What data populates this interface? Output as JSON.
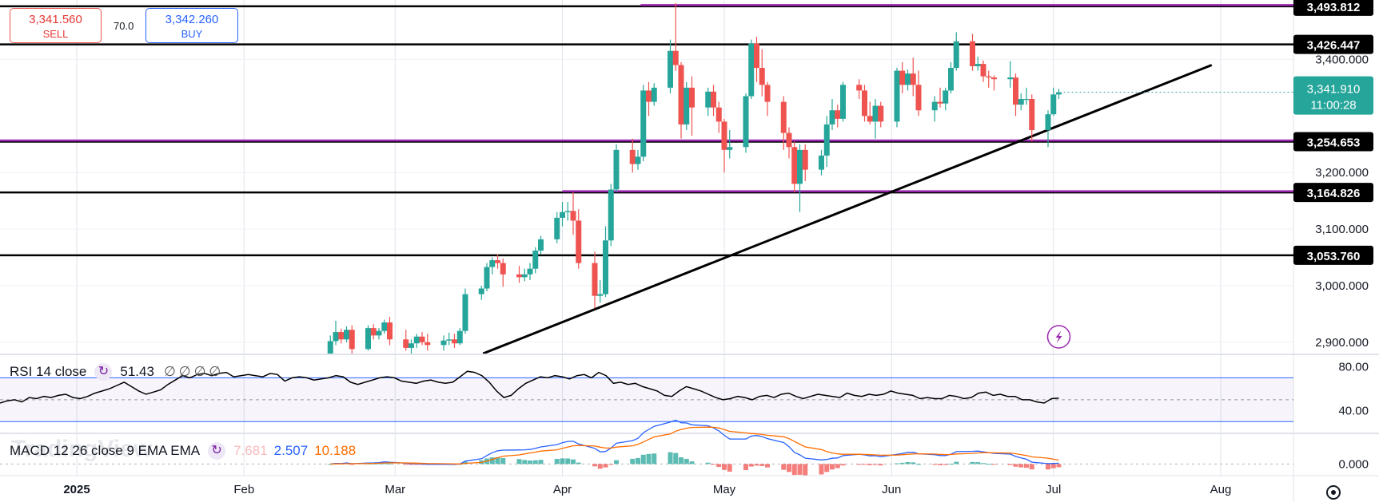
{
  "trade_panel": {
    "sell_price": "3,341.560",
    "sell_label": "SELL",
    "spread": "70.0",
    "buy_price": "3,342.260",
    "buy_label": "BUY"
  },
  "watermark": "TradingView",
  "colors": {
    "up": "#26a69a",
    "down": "#ef5350",
    "level_line": "#000000",
    "purple_line": "#9c27b0",
    "rsi_line": "#000000",
    "rsi_bands": "#2962ff",
    "macd_line": "#2962ff",
    "signal_line": "#ff6d00",
    "price_label_bg": "#000000",
    "current_price_bg": "#26a69a"
  },
  "chart_data": {
    "type": "candlestick",
    "y_range": [
      2880,
      3505
    ],
    "x_axis_labels": [
      "2025",
      "Feb",
      "Mar",
      "Apr",
      "May",
      "Jun",
      "Jul",
      "Aug"
    ],
    "y_tick_labels": [
      "3,400.000",
      "3,200.000",
      "3,100.000",
      "3,000.000",
      "2,900.000"
    ],
    "y_ticks": [
      3400,
      3200,
      3100,
      3000,
      2900
    ],
    "horizontal_levels": [
      {
        "value": 3493.812,
        "label": "3,493.812",
        "purple_overlay": true
      },
      {
        "value": 3426.447,
        "label": "3,426.447",
        "purple_overlay": false
      },
      {
        "value": 3254.653,
        "label": "3,254.653",
        "purple_overlay": true
      },
      {
        "value": 3164.826,
        "label": "3,164.826",
        "purple_overlay": true
      },
      {
        "value": 3053.76,
        "label": "3,053.760",
        "purple_overlay": false
      }
    ],
    "current_price": {
      "value": 3341.91,
      "label": "3,341.910",
      "countdown": "11:00:28"
    },
    "trendline": {
      "from": [
        "Mar",
        2880
      ],
      "to": [
        "Jul",
        3390
      ]
    },
    "candles": [
      [
        "Feb 17",
        2880,
        2912,
        2875,
        2902
      ],
      [
        "Feb 18",
        2902,
        2938,
        2895,
        2918
      ],
      [
        "Feb 19",
        2918,
        2924,
        2898,
        2905
      ],
      [
        "Feb 20",
        2905,
        2928,
        2900,
        2922
      ],
      [
        "Feb 21",
        2922,
        2930,
        2880,
        2888
      ],
      [
        "Feb 24",
        2888,
        2930,
        2885,
        2925
      ],
      [
        "Feb 25",
        2925,
        2932,
        2905,
        2912
      ],
      [
        "Feb 26",
        2912,
        2925,
        2905,
        2920
      ],
      [
        "Feb 27",
        2920,
        2940,
        2915,
        2935
      ],
      [
        "Feb 28",
        2935,
        2945,
        2895,
        2905
      ],
      [
        "Mar 3",
        2905,
        2922,
        2885,
        2890
      ],
      [
        "Mar 4",
        2890,
        2905,
        2880,
        2898
      ],
      [
        "Mar 5",
        2898,
        2915,
        2890,
        2910
      ],
      [
        "Mar 6",
        2910,
        2918,
        2895,
        2900
      ],
      [
        "Mar 7",
        2900,
        2915,
        2885,
        2895
      ],
      [
        "Mar 10",
        2895,
        2912,
        2885,
        2903
      ],
      [
        "Mar 11",
        2903,
        2917,
        2895,
        2905
      ],
      [
        "Mar 12",
        2905,
        2915,
        2890,
        2898
      ],
      [
        "Mar 13",
        2898,
        2925,
        2895,
        2920
      ],
      [
        "Mar 14",
        2920,
        2995,
        2915,
        2985
      ],
      [
        "Mar 17",
        2985,
        3000,
        2975,
        2995
      ],
      [
        "Mar 18",
        2995,
        3040,
        2990,
        3033
      ],
      [
        "Mar 19",
        3033,
        3050,
        3020,
        3045
      ],
      [
        "Mar 20",
        3045,
        3055,
        3030,
        3040
      ],
      [
        "Mar 21",
        3040,
        3048,
        2998,
        3020
      ],
      [
        "Mar 24",
        3020,
        3035,
        3005,
        3015
      ],
      [
        "Mar 25",
        3015,
        3030,
        3008,
        3020
      ],
      [
        "Mar 26",
        3020,
        3040,
        3010,
        3030
      ],
      [
        "Mar 27",
        3030,
        3068,
        3022,
        3062
      ],
      [
        "Mar 28",
        3062,
        3088,
        3055,
        3082
      ],
      [
        "Mar 31",
        3082,
        3130,
        3075,
        3120
      ],
      [
        "Apr 1",
        3120,
        3148,
        3105,
        3130
      ],
      [
        "Apr 2",
        3130,
        3148,
        3115,
        3132
      ],
      [
        "Apr 3",
        3132,
        3165,
        3090,
        3115
      ],
      [
        "Apr 4",
        3115,
        3135,
        3030,
        3040
      ],
      [
        "Apr 7",
        3040,
        3060,
        2960,
        2982
      ],
      [
        "Apr 8",
        2982,
        3010,
        2970,
        2985
      ],
      [
        "Apr 9",
        2985,
        3105,
        2980,
        3080
      ],
      [
        "Apr 10",
        3080,
        3180,
        3070,
        3170
      ],
      [
        "Apr 11",
        3170,
        3250,
        3165,
        3240
      ],
      [
        "Apr 14",
        3240,
        3260,
        3200,
        3215
      ],
      [
        "Apr 15",
        3215,
        3240,
        3205,
        3228
      ],
      [
        "Apr 16",
        3228,
        3355,
        3220,
        3345
      ],
      [
        "Apr 17",
        3345,
        3360,
        3300,
        3325
      ],
      [
        "Apr 18",
        3325,
        3358,
        3318,
        3350
      ],
      [
        "Apr 21",
        3350,
        3435,
        3340,
        3415
      ],
      [
        "Apr 22",
        3415,
        3500,
        3380,
        3390
      ],
      [
        "Apr 23",
        3390,
        3395,
        3260,
        3285
      ],
      [
        "Apr 24",
        3285,
        3360,
        3275,
        3350
      ],
      [
        "Apr 25",
        3350,
        3370,
        3265,
        3315
      ],
      [
        "Apr 28",
        3315,
        3350,
        3300,
        3343
      ],
      [
        "Apr 29",
        3343,
        3355,
        3300,
        3315
      ],
      [
        "Apr 30",
        3315,
        3325,
        3270,
        3290
      ],
      [
        "May 1",
        3290,
        3295,
        3200,
        3240
      ],
      [
        "May 2",
        3240,
        3275,
        3225,
        3245
      ],
      [
        "May 5",
        3245,
        3340,
        3235,
        3335
      ],
      [
        "May 6",
        3335,
        3435,
        3330,
        3428
      ],
      [
        "May 7",
        3428,
        3440,
        3360,
        3385
      ],
      [
        "May 8",
        3385,
        3418,
        3335,
        3355
      ],
      [
        "May 9",
        3355,
        3360,
        3300,
        3325
      ],
      [
        "May 12",
        3325,
        3335,
        3240,
        3270
      ],
      [
        "May 13",
        3270,
        3280,
        3225,
        3245
      ],
      [
        "May 14",
        3245,
        3255,
        3165,
        3180
      ],
      [
        "May 15",
        3180,
        3250,
        3130,
        3240
      ],
      [
        "May 16",
        3240,
        3250,
        3185,
        3205
      ],
      [
        "May 19",
        3205,
        3240,
        3195,
        3230
      ],
      [
        "May 20",
        3230,
        3300,
        3210,
        3285
      ],
      [
        "May 21",
        3285,
        3330,
        3275,
        3310
      ],
      [
        "May 22",
        3310,
        3320,
        3280,
        3295
      ],
      [
        "May 23",
        3295,
        3360,
        3290,
        3355
      ],
      [
        "May 26",
        3355,
        3365,
        3330,
        3345
      ],
      [
        "May 27",
        3345,
        3355,
        3290,
        3300
      ],
      [
        "May 28",
        3300,
        3325,
        3285,
        3290
      ],
      [
        "May 29",
        3290,
        3330,
        3260,
        3318
      ],
      [
        "May 30",
        3318,
        3325,
        3280,
        3290
      ],
      [
        "Jun 2",
        3290,
        3385,
        3280,
        3380
      ],
      [
        "Jun 3",
        3380,
        3395,
        3340,
        3355
      ],
      [
        "Jun 4",
        3355,
        3382,
        3345,
        3375
      ],
      [
        "Jun 5",
        3375,
        3403,
        3335,
        3355
      ],
      [
        "Jun 6",
        3355,
        3380,
        3300,
        3310
      ],
      [
        "Jun 9",
        3310,
        3335,
        3290,
        3325
      ],
      [
        "Jun 10",
        3325,
        3350,
        3315,
        3322
      ],
      [
        "Jun 11",
        3322,
        3350,
        3310,
        3345
      ],
      [
        "Jun 12",
        3345,
        3395,
        3340,
        3385
      ],
      [
        "Jun 13",
        3385,
        3448,
        3380,
        3432
      ],
      [
        "Jun 16",
        3432,
        3445,
        3380,
        3388
      ],
      [
        "Jun 17",
        3388,
        3405,
        3380,
        3392
      ],
      [
        "Jun 18",
        3392,
        3398,
        3360,
        3370
      ],
      [
        "Jun 19",
        3370,
        3380,
        3350,
        3368
      ],
      [
        "Jun 20",
        3368,
        3372,
        3345,
        3365
      ],
      [
        "Jun 23",
        3365,
        3397,
        3350,
        3368
      ],
      [
        "Jun 24",
        3368,
        3375,
        3300,
        3320
      ],
      [
        "Jun 25",
        3320,
        3340,
        3310,
        3330
      ],
      [
        "Jun 26",
        3330,
        3350,
        3320,
        3330
      ],
      [
        "Jun 27",
        3330,
        3338,
        3255,
        3275
      ],
      [
        "Jun 30",
        3275,
        3310,
        3245,
        3303
      ],
      [
        "Jul 1",
        3303,
        3350,
        3300,
        3338
      ],
      [
        "Jul 2",
        3338,
        3348,
        3330,
        3341.9
      ]
    ],
    "rsi": {
      "label": "RSI 14 close",
      "value": "51.43",
      "placeholders": [
        "∅",
        "∅",
        "∅",
        "∅"
      ],
      "range": [
        20,
        90
      ],
      "upper_band": 70,
      "lower_band": 30,
      "mid_line": 50,
      "tick_labels": [
        "80.00",
        "40.00"
      ],
      "ticks": [
        80,
        40
      ],
      "values": [
        47,
        49,
        50,
        48,
        52,
        51,
        53,
        52,
        54,
        55,
        52,
        51,
        53,
        56,
        58,
        60,
        63,
        66,
        62,
        58,
        55,
        57,
        59,
        64,
        68,
        72,
        70,
        73,
        74,
        72,
        74,
        75,
        71,
        72,
        73,
        72,
        71,
        74,
        73,
        67,
        70,
        71,
        70,
        68,
        69,
        70,
        72,
        71,
        66,
        64,
        66,
        68,
        70,
        71,
        70,
        67,
        66,
        65,
        67,
        68,
        66,
        65,
        66,
        71,
        76,
        75,
        72,
        66,
        58,
        52,
        54,
        60,
        65,
        68,
        71,
        70,
        72,
        71,
        69,
        72,
        73,
        70,
        75,
        72,
        65,
        66,
        64,
        65,
        62,
        60,
        58,
        54,
        53,
        58,
        62,
        60,
        58,
        55,
        52,
        50,
        51,
        53,
        52,
        50,
        53,
        54,
        52,
        55,
        56,
        53,
        51,
        53,
        55,
        54,
        53,
        52,
        56,
        54,
        53,
        55,
        54,
        55,
        58,
        56,
        55,
        54,
        51,
        52,
        51,
        51,
        54,
        53,
        51,
        52,
        56,
        57,
        54,
        55,
        53,
        53,
        50,
        50,
        48,
        47,
        51,
        51.43
      ]
    },
    "macd": {
      "label": "MACD 12 26 close 9 EMA EMA",
      "values_text": [
        "7.681",
        "2.507",
        "10.188"
      ],
      "range": [
        -12,
        30
      ],
      "tick_labels": [
        "0.000"
      ],
      "ticks": [
        0
      ]
    }
  },
  "footer": {
    "settings_icon": "gear-icon"
  },
  "current_price_marker": "lightning-icon"
}
